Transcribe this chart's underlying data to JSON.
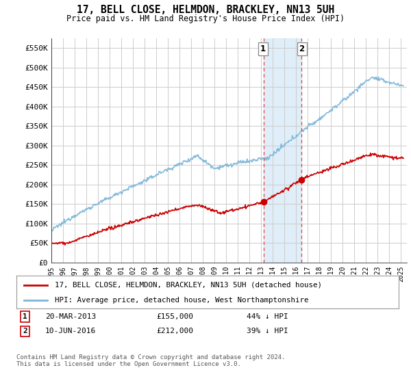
{
  "title": "17, BELL CLOSE, HELMDON, BRACKLEY, NN13 5UH",
  "subtitle": "Price paid vs. HM Land Registry's House Price Index (HPI)",
  "ylabel_ticks": [
    "£0",
    "£50K",
    "£100K",
    "£150K",
    "£200K",
    "£250K",
    "£300K",
    "£350K",
    "£400K",
    "£450K",
    "£500K",
    "£550K"
  ],
  "ytick_values": [
    0,
    50000,
    100000,
    150000,
    200000,
    250000,
    300000,
    350000,
    400000,
    450000,
    500000,
    550000
  ],
  "ylim": [
    0,
    575000
  ],
  "xlim_start": 1995.0,
  "xlim_end": 2025.5,
  "hpi_color": "#7ab4d8",
  "price_color": "#cc0000",
  "marker1_date": 2013.22,
  "marker1_price": 155000,
  "marker2_date": 2016.44,
  "marker2_price": 212000,
  "legend_line1": "17, BELL CLOSE, HELMDON, BRACKLEY, NN13 5UH (detached house)",
  "legend_line2": "HPI: Average price, detached house, West Northamptonshire",
  "footer": "Contains HM Land Registry data © Crown copyright and database right 2024.\nThis data is licensed under the Open Government Licence v3.0.",
  "shade_x1": 2013.22,
  "shade_x2": 2016.44,
  "background_color": "#ffffff",
  "grid_color": "#cccccc",
  "dashed_color": "#dd4444"
}
